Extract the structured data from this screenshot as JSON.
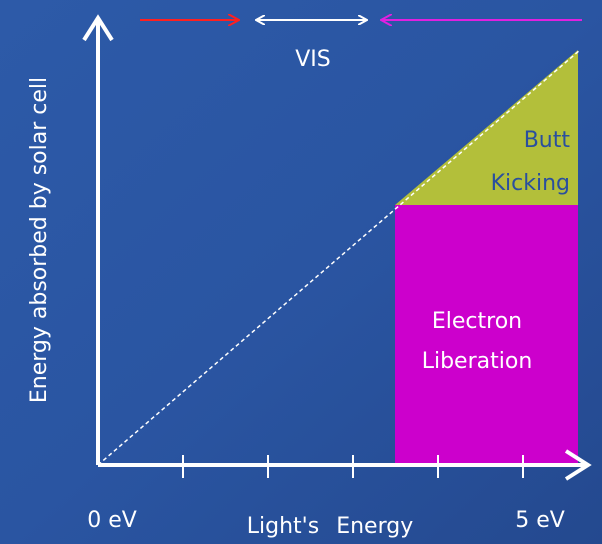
{
  "y_axis_label": "Energy absorbed by solar cell",
  "spectrum_label": "VIS",
  "upper_region": [
    "Butt",
    "Kicking"
  ],
  "lower_region": [
    "Electron",
    "Liberation"
  ],
  "x_axis": {
    "start": "0 eV",
    "label": "Light's Energy",
    "end": "5 eV"
  }
}
